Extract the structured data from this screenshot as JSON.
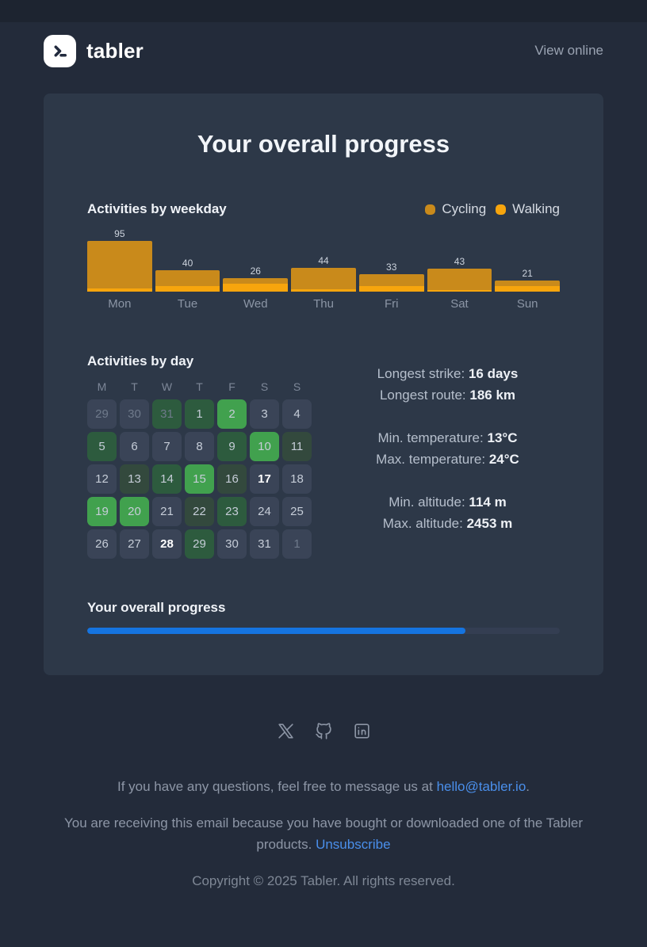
{
  "header": {
    "brand": "tabler",
    "view_online": "View online"
  },
  "card": {
    "title": "Your overall progress",
    "calendar": {
      "title": "Activities by day",
      "weekday_headers": [
        "M",
        "T",
        "W",
        "T",
        "F",
        "S",
        "S"
      ],
      "level_colors": {
        "none": "#3a4457",
        "low": "#33493d",
        "mid": "#2d5b3e",
        "high": "#41a14e"
      },
      "cells": [
        {
          "day": 29,
          "level": "none",
          "muted": true
        },
        {
          "day": 30,
          "level": "none",
          "muted": true
        },
        {
          "day": 31,
          "level": "mid",
          "muted": true
        },
        {
          "day": 1,
          "level": "mid"
        },
        {
          "day": 2,
          "level": "high"
        },
        {
          "day": 3,
          "level": "none"
        },
        {
          "day": 4,
          "level": "none"
        },
        {
          "day": 5,
          "level": "mid"
        },
        {
          "day": 6,
          "level": "none"
        },
        {
          "day": 7,
          "level": "none"
        },
        {
          "day": 8,
          "level": "none"
        },
        {
          "day": 9,
          "level": "mid"
        },
        {
          "day": 10,
          "level": "high"
        },
        {
          "day": 11,
          "level": "low"
        },
        {
          "day": 12,
          "level": "none"
        },
        {
          "day": 13,
          "level": "low"
        },
        {
          "day": 14,
          "level": "mid"
        },
        {
          "day": 15,
          "level": "high"
        },
        {
          "day": 16,
          "level": "low"
        },
        {
          "day": 17,
          "level": "none",
          "bold": true
        },
        {
          "day": 18,
          "level": "none"
        },
        {
          "day": 19,
          "level": "high"
        },
        {
          "day": 20,
          "level": "high"
        },
        {
          "day": 21,
          "level": "none"
        },
        {
          "day": 22,
          "level": "low"
        },
        {
          "day": 23,
          "level": "mid"
        },
        {
          "day": 24,
          "level": "none"
        },
        {
          "day": 25,
          "level": "none"
        },
        {
          "day": 26,
          "level": "none"
        },
        {
          "day": 27,
          "level": "none"
        },
        {
          "day": 28,
          "level": "none",
          "bold": true
        },
        {
          "day": 29,
          "level": "mid"
        },
        {
          "day": 30,
          "level": "none"
        },
        {
          "day": 31,
          "level": "none"
        },
        {
          "day": 1,
          "level": "none",
          "muted": true
        }
      ]
    },
    "stats": {
      "groups": [
        [
          {
            "label": "Longest strike:",
            "value": "16 days"
          },
          {
            "label": "Longest route:",
            "value": "186 km"
          }
        ],
        [
          {
            "label": "Min. temperature:",
            "value": "13°C"
          },
          {
            "label": "Max. temperature:",
            "value": "24°C"
          }
        ],
        [
          {
            "label": "Min. altitude:",
            "value": "114 m"
          },
          {
            "label": "Max. altitude:",
            "value": "2453 m"
          }
        ]
      ]
    },
    "progress": {
      "label": "Your overall progress",
      "percent": 80,
      "fill_color": "#1574e0"
    }
  },
  "footer": {
    "social_icons": [
      "x-icon",
      "github-icon",
      "linkedin-icon"
    ],
    "line1_prefix": "If you have any questions, feel free to message us at ",
    "line1_link": "hello@tabler.io",
    "line1_suffix": ".",
    "line2_prefix": "You are receiving this email because you have bought or downloaded one of the Tabler products. ",
    "line2_link": "Unsubscribe",
    "copyright": "Copyright © 2025 Tabler. All rights reserved.",
    "link_color": "#4a8feb"
  },
  "chart_data": {
    "type": "bar",
    "stacked": true,
    "title": "Activities by weekday",
    "categories": [
      "Mon",
      "Tue",
      "Wed",
      "Thu",
      "Fri",
      "Sat",
      "Sun"
    ],
    "series": [
      {
        "name": "Cycling",
        "color": "#c98a1b",
        "values": [
          89,
          30,
          11,
          40,
          23,
          40,
          11
        ]
      },
      {
        "name": "Walking",
        "color": "#f7a50d",
        "values": [
          6,
          10,
          15,
          4,
          10,
          3,
          10
        ]
      }
    ],
    "totals": [
      95,
      40,
      26,
      44,
      33,
      43,
      21
    ],
    "ylim": [
      0,
      95
    ],
    "bar_value_labels": true,
    "legend_position": "top-right"
  }
}
